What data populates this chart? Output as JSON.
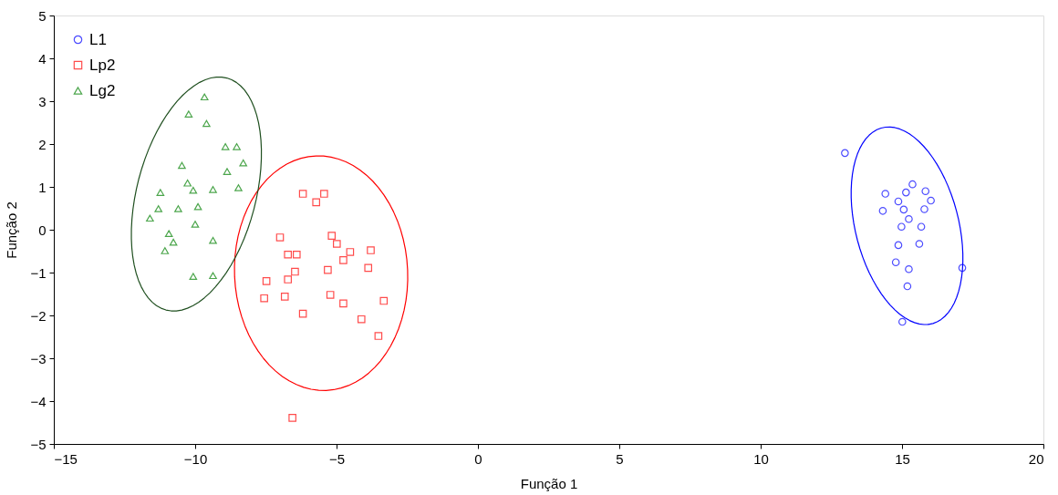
{
  "chart_data": {
    "type": "scatter",
    "xlabel": "Função 1",
    "ylabel": "Função 2",
    "xlim": [
      -15,
      20
    ],
    "xticks": [
      -15,
      -10,
      -5,
      0,
      5,
      10,
      15,
      20
    ],
    "ylim": [
      -5,
      5
    ],
    "yticks": [
      -5,
      -4,
      -3,
      -2,
      -1,
      0,
      1,
      2,
      3,
      4,
      5
    ],
    "grid": false,
    "legend": "top left",
    "series": [
      {
        "name": "L1",
        "marker": "circle",
        "color": "#0000ff",
        "x": [
          12.98,
          15.37,
          14.41,
          15.14,
          15.83,
          16.02,
          14.87,
          15.06,
          14.32,
          15.79,
          15.24,
          14.98,
          15.68,
          14.87,
          15.61,
          14.78,
          15.24,
          17.13,
          15.19,
          15.01
        ],
        "values": [
          1.79,
          1.06,
          0.84,
          0.87,
          0.9,
          0.68,
          0.66,
          0.47,
          0.44,
          0.48,
          0.25,
          0.07,
          0.07,
          -0.36,
          -0.33,
          -0.76,
          -0.92,
          -0.89,
          -1.32,
          -2.15
        ]
      },
      {
        "name": "Lp2",
        "marker": "square",
        "color": "#ff0000",
        "x": [
          -6.19,
          -5.44,
          -5.72,
          -7.0,
          -5.17,
          -4.99,
          -6.72,
          -6.41,
          -4.52,
          -3.79,
          -4.76,
          -3.88,
          -6.47,
          -5.31,
          -7.48,
          -6.72,
          -7.56,
          -6.83,
          -5.22,
          -4.76,
          -3.33,
          -6.19,
          -4.12,
          -3.52,
          -6.56
        ],
        "values": [
          0.84,
          0.84,
          0.64,
          -0.18,
          -0.14,
          -0.33,
          -0.58,
          -0.58,
          -0.52,
          -0.48,
          -0.71,
          -0.89,
          -0.98,
          -0.94,
          -1.2,
          -1.16,
          -1.6,
          -1.56,
          -1.52,
          -1.72,
          -1.66,
          -1.96,
          -2.09,
          -2.48,
          -4.39
        ]
      },
      {
        "name": "Lg2",
        "marker": "triangle",
        "color": "#008000",
        "x": [
          -9.67,
          -10.23,
          -9.6,
          -8.93,
          -8.53,
          -8.3,
          -10.47,
          -8.87,
          -10.27,
          -10.07,
          -11.23,
          -9.37,
          -8.47,
          -11.3,
          -10.6,
          -9.9,
          -11.6,
          -10.0,
          -10.93,
          -10.77,
          -9.37,
          -11.07,
          -10.07,
          -9.37
        ],
        "values": [
          3.1,
          2.7,
          2.48,
          1.94,
          1.94,
          1.56,
          1.5,
          1.36,
          1.09,
          0.92,
          0.87,
          0.94,
          0.98,
          0.49,
          0.49,
          0.54,
          0.27,
          0.13,
          -0.09,
          -0.29,
          -0.25,
          -0.49,
          -1.09,
          -1.07
        ]
      }
    ]
  }
}
